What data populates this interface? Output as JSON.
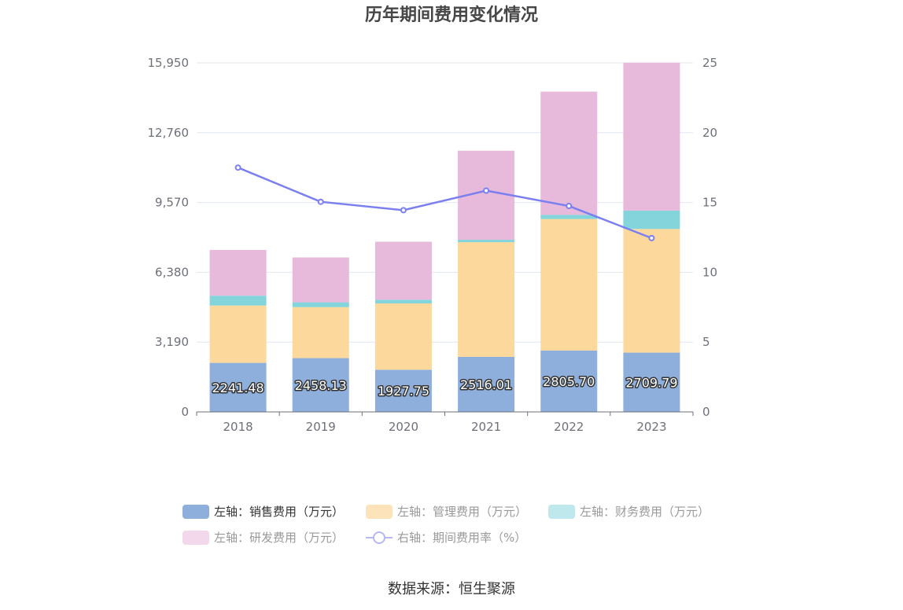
{
  "chart_data": {
    "type": "bar",
    "title": "历年期间费用变化情况",
    "categories": [
      "2018",
      "2019",
      "2020",
      "2021",
      "2022",
      "2023"
    ],
    "left_axis": {
      "ticks": [
        "0",
        "3,190",
        "6,380",
        "9,570",
        "12,760",
        "15,950"
      ],
      "ylim": [
        0,
        15950
      ]
    },
    "right_axis": {
      "ticks": [
        "0",
        "5",
        "10",
        "15",
        "20",
        "25"
      ],
      "ylim": [
        0,
        25
      ]
    },
    "series": [
      {
        "name": "左轴：销售费用（万元）",
        "type": "bar",
        "axis": "left",
        "color": "#8eaedc",
        "values": [
          2241.48,
          2458.13,
          1927.75,
          2516.01,
          2805.7,
          2709.79
        ],
        "labels": [
          "2241.48",
          "2458.13",
          "1927.75",
          "2516.01",
          "2805.70",
          "2709.79"
        ]
      },
      {
        "name": "左轴：管理费用（万元）",
        "type": "bar",
        "axis": "left",
        "color": "#fdd89c",
        "values": [
          2620,
          2330,
          3030,
          5240,
          6010,
          5650
        ]
      },
      {
        "name": "左轴：财务费用（万元）",
        "type": "bar",
        "axis": "left",
        "color": "#84d5db",
        "values": [
          450,
          220,
          170,
          110,
          190,
          840
        ]
      },
      {
        "name": "左轴：研发费用（万元）",
        "type": "bar",
        "axis": "left",
        "color": "#e7b9da",
        "values": [
          2090,
          2050,
          2650,
          4070,
          5630,
          6760
        ]
      },
      {
        "name": "右轴：期间费用率（%）",
        "type": "line",
        "axis": "right",
        "color": "#7b7fef",
        "values": [
          17.5,
          15.05,
          14.45,
          15.85,
          14.75,
          12.45
        ]
      }
    ],
    "legend_position": "bottom"
  },
  "source": "数据来源：恒生聚源"
}
